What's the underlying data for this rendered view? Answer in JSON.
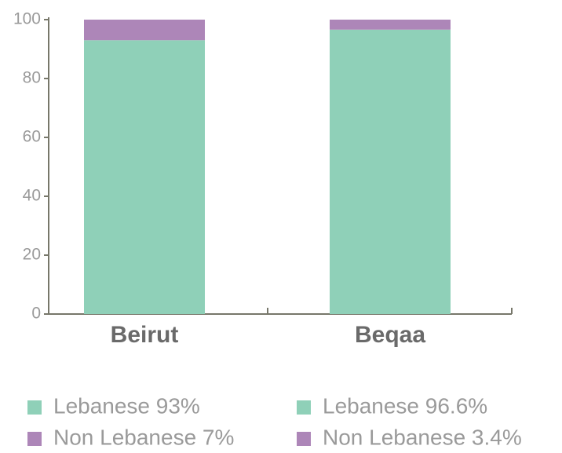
{
  "chart_data": {
    "type": "stacked_bar",
    "categories": [
      "Beirut",
      "Beqaa"
    ],
    "series": [
      {
        "name": "Lebanese",
        "color": "#8fd0b8",
        "values": [
          93,
          96.6
        ],
        "value_labels": [
          "Lebanese 93%",
          "Lebanese 96.6%"
        ]
      },
      {
        "name": "Non Lebanese",
        "color": "#ad86b8",
        "values": [
          7,
          3.4
        ],
        "value_labels": [
          "Non Lebanese 7%",
          "Non Lebanese 3.4%"
        ]
      }
    ],
    "ylim": [
      0,
      100
    ],
    "yticks": [
      0,
      20,
      40,
      60,
      80,
      100
    ]
  }
}
